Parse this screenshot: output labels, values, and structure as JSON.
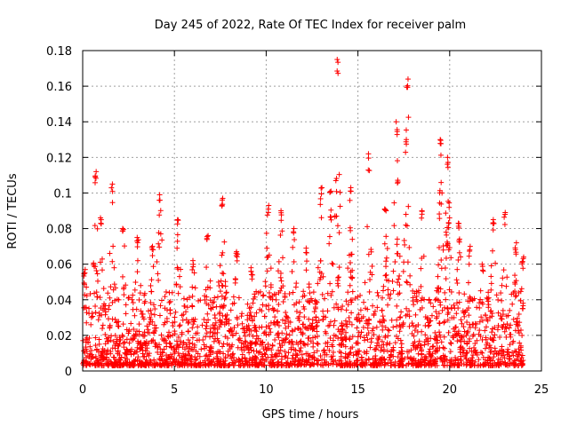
{
  "chart_data": {
    "type": "scatter",
    "title": "Day 245 of 2022, Rate Of TEC Index for receiver palm",
    "xlabel": "GPS time / hours",
    "ylabel": "ROTI / TECUs",
    "xlim": [
      0,
      25
    ],
    "ylim": [
      0,
      0.18
    ],
    "x_ticks": [
      0,
      5,
      10,
      15,
      20,
      25
    ],
    "y_ticks": [
      0,
      0.02,
      0.04,
      0.06,
      0.08,
      0.1,
      0.12,
      0.14,
      0.16,
      0.18
    ],
    "x_tick_labels": [
      "0",
      "5",
      "10",
      "15",
      "20",
      "25"
    ],
    "y_tick_labels": [
      "0",
      "0.02",
      "0.04",
      "0.06",
      "0.08",
      "0.1",
      "0.12",
      "0.14",
      "0.16",
      "0.18"
    ],
    "grid": true,
    "marker": "+",
    "marker_color": "#ff0000",
    "data_time_range_hours": [
      0,
      24
    ],
    "series": [
      {
        "name": "ROTI",
        "envelope_peaks": [
          {
            "x": 0.1,
            "y": 0.057
          },
          {
            "x": 0.7,
            "y": 0.112
          },
          {
            "x": 1.0,
            "y": 0.086
          },
          {
            "x": 1.6,
            "y": 0.105
          },
          {
            "x": 2.2,
            "y": 0.08
          },
          {
            "x": 3.0,
            "y": 0.075
          },
          {
            "x": 3.8,
            "y": 0.07
          },
          {
            "x": 4.2,
            "y": 0.099
          },
          {
            "x": 5.2,
            "y": 0.085
          },
          {
            "x": 6.0,
            "y": 0.062
          },
          {
            "x": 6.8,
            "y": 0.076
          },
          {
            "x": 7.6,
            "y": 0.097
          },
          {
            "x": 8.4,
            "y": 0.067
          },
          {
            "x": 9.2,
            "y": 0.058
          },
          {
            "x": 10.1,
            "y": 0.093
          },
          {
            "x": 10.8,
            "y": 0.09
          },
          {
            "x": 11.5,
            "y": 0.08
          },
          {
            "x": 12.2,
            "y": 0.069
          },
          {
            "x": 13.0,
            "y": 0.103
          },
          {
            "x": 13.5,
            "y": 0.101
          },
          {
            "x": 13.9,
            "y": 0.175
          },
          {
            "x": 14.6,
            "y": 0.103
          },
          {
            "x": 15.6,
            "y": 0.122
          },
          {
            "x": 16.5,
            "y": 0.091
          },
          {
            "x": 17.1,
            "y": 0.14
          },
          {
            "x": 17.7,
            "y": 0.164
          },
          {
            "x": 18.5,
            "y": 0.09
          },
          {
            "x": 19.5,
            "y": 0.13
          },
          {
            "x": 19.9,
            "y": 0.12
          },
          {
            "x": 20.5,
            "y": 0.083
          },
          {
            "x": 21.1,
            "y": 0.07
          },
          {
            "x": 21.8,
            "y": 0.06
          },
          {
            "x": 22.4,
            "y": 0.085
          },
          {
            "x": 23.0,
            "y": 0.089
          },
          {
            "x": 23.6,
            "y": 0.072
          },
          {
            "x": 24.0,
            "y": 0.064
          }
        ]
      }
    ]
  }
}
